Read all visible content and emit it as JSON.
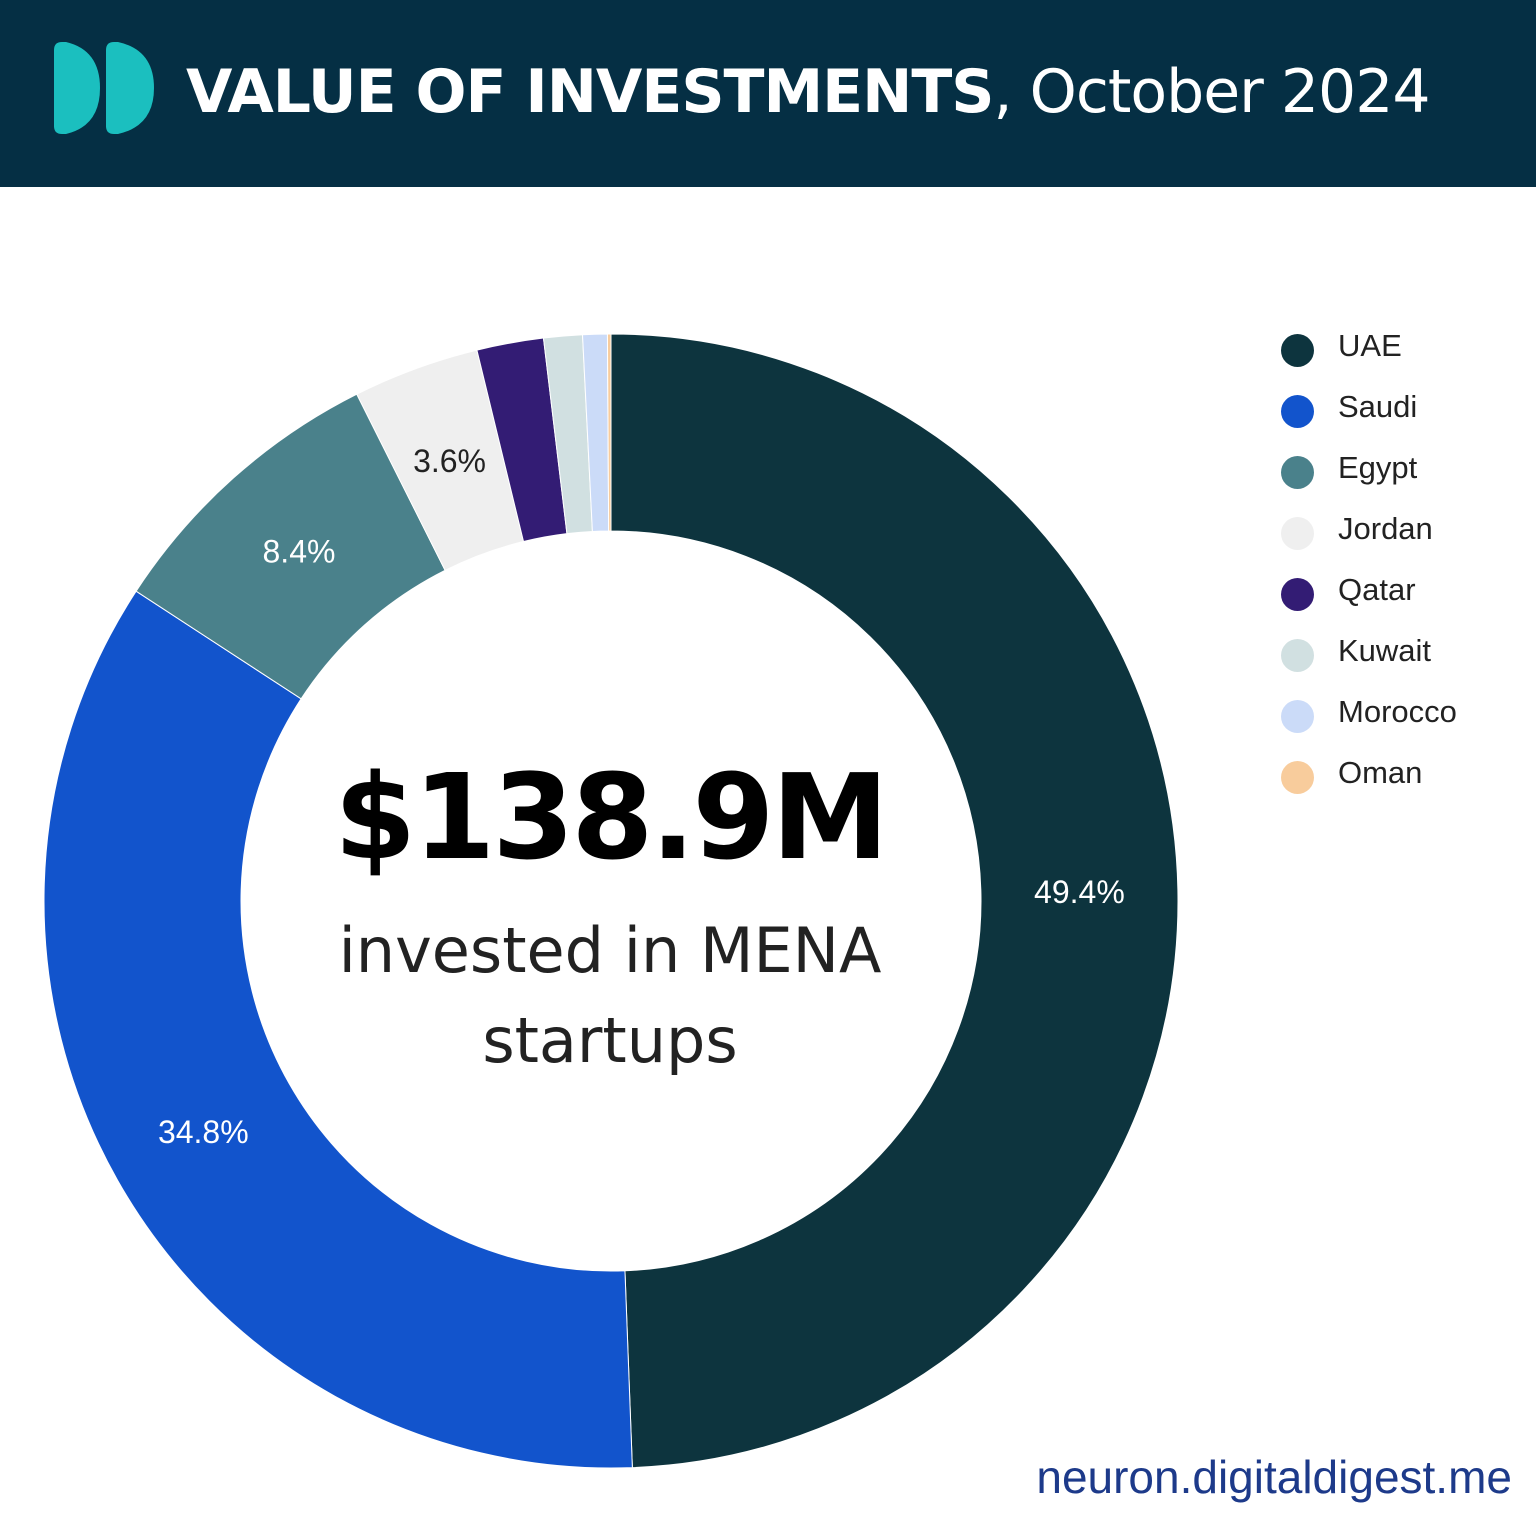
{
  "header": {
    "title_bold": "VALUE OF INVESTMENTS",
    "title_rest": ", October 2024",
    "logo_color": "#1bbfbf",
    "background": "#052f44"
  },
  "center": {
    "value": "$138.9M",
    "caption_line1": "invested in MENA",
    "caption_line2": "startups"
  },
  "footer": {
    "url": "neuron.digitaldigest.me"
  },
  "chart_data": {
    "type": "pie",
    "variant": "donut",
    "legend_position": "right",
    "categories": [
      "UAE",
      "Saudi",
      "Egypt",
      "Jordan",
      "Qatar",
      "Kuwait",
      "Morocco",
      "Oman"
    ],
    "values": [
      49.4,
      34.8,
      8.4,
      3.6,
      1.9,
      1.1,
      0.7,
      0.1
    ],
    "data_labels": [
      "49.4%",
      "34.8%",
      "8.4%",
      "3.6%",
      "",
      "",
      "",
      ""
    ],
    "colors": [
      "#0d343e",
      "#1254cc",
      "#4a818b",
      "#efefef",
      "#331c74",
      "#d1e0e1",
      "#cbdbf8",
      "#f8cc9c"
    ],
    "label_colors": [
      "#ffffff",
      "#ffffff",
      "#ffffff",
      "#222222",
      "#ffffff",
      "#222222",
      "#222222",
      "#222222"
    ]
  }
}
